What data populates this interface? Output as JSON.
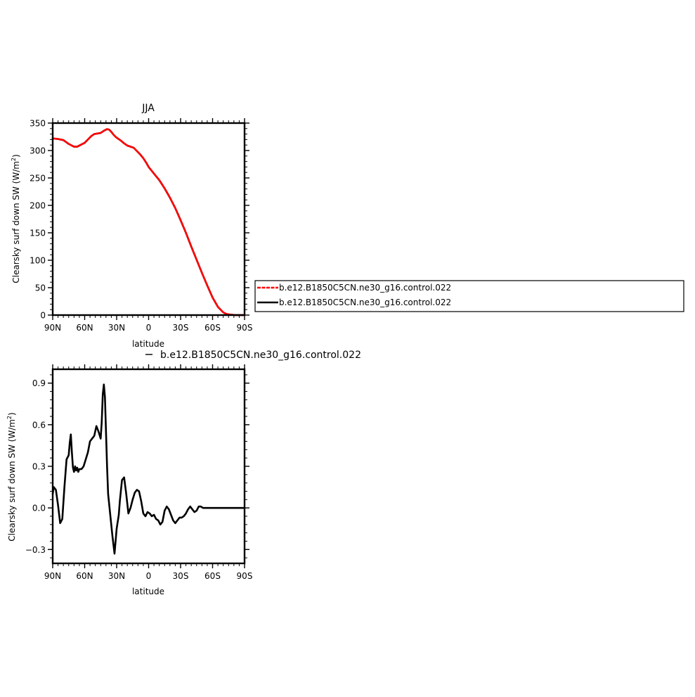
{
  "chart_data": [
    {
      "type": "line",
      "title": "JJA",
      "xlabel": "latitude",
      "ylabel": "Clearsky surf down SW (W/m",
      "ylabel_sup": "2",
      "ylabel_close": ")",
      "xlim": [
        90,
        -90
      ],
      "ylim": [
        0,
        350
      ],
      "xticks": [
        {
          "value": 90,
          "label": "90N"
        },
        {
          "value": 60,
          "label": "60N"
        },
        {
          "value": 30,
          "label": "30N"
        },
        {
          "value": 0,
          "label": "0"
        },
        {
          "value": -30,
          "label": "30S"
        },
        {
          "value": -60,
          "label": "60S"
        },
        {
          "value": -90,
          "label": "90S"
        }
      ],
      "yticks": [
        {
          "value": 0,
          "label": "0"
        },
        {
          "value": 50,
          "label": "50"
        },
        {
          "value": 100,
          "label": "100"
        },
        {
          "value": 150,
          "label": "150"
        },
        {
          "value": 200,
          "label": "200"
        },
        {
          "value": 250,
          "label": "250"
        },
        {
          "value": 300,
          "label": "300"
        },
        {
          "value": 350,
          "label": "350"
        }
      ],
      "legend_position": "right",
      "series": [
        {
          "name": "b.e12.B1850C5CN.ne30_g16.control.022",
          "color": "#000000",
          "dashed": false,
          "x": [
            90,
            85,
            80,
            75,
            72,
            70,
            67,
            64,
            60,
            57,
            54,
            51,
            48,
            45,
            42,
            39,
            37,
            35,
            33,
            31,
            29,
            26,
            23,
            20,
            17,
            14,
            11,
            8,
            5,
            2,
            0,
            -5,
            -10,
            -15,
            -20,
            -25,
            -30,
            -35,
            -40,
            -45,
            -50,
            -55,
            -60,
            -65,
            -70,
            -73,
            -76,
            -79,
            -82,
            -85,
            -88,
            -90
          ],
          "y": [
            322,
            321,
            319,
            312,
            309,
            307,
            307,
            310,
            314,
            320,
            326,
            330,
            331,
            332,
            336,
            339,
            338,
            334,
            329,
            325,
            322,
            318,
            313,
            309,
            307,
            305,
            299,
            293,
            286,
            277,
            270,
            258,
            246,
            231,
            214,
            195,
            173,
            150,
            125,
            101,
            77,
            54,
            32,
            15,
            5,
            2,
            1,
            0.5,
            0,
            0,
            0,
            0
          ]
        },
        {
          "name": "b.e12.B1850C5CN.ne30_g16.control.022",
          "color": "#ff0000",
          "dashed": true,
          "x": [
            90,
            85,
            80,
            75,
            72,
            70,
            67,
            64,
            60,
            57,
            54,
            51,
            48,
            45,
            42,
            39,
            37,
            35,
            33,
            31,
            29,
            26,
            23,
            20,
            17,
            14,
            11,
            8,
            5,
            2,
            0,
            -5,
            -10,
            -15,
            -20,
            -25,
            -30,
            -35,
            -40,
            -45,
            -50,
            -55,
            -60,
            -65,
            -70,
            -73,
            -76,
            -79,
            -82,
            -85,
            -88,
            -90
          ],
          "y": [
            322,
            321,
            319,
            312,
            309,
            307,
            307,
            310,
            314,
            320,
            326,
            330,
            331,
            332,
            336,
            339,
            338,
            334,
            329,
            325,
            322,
            318,
            313,
            309,
            307,
            305,
            299,
            293,
            286,
            277,
            270,
            258,
            246,
            231,
            214,
            195,
            173,
            150,
            125,
            101,
            77,
            54,
            32,
            15,
            5,
            2,
            1,
            0.5,
            0,
            0,
            0,
            0
          ]
        }
      ]
    },
    {
      "type": "line",
      "title": "",
      "xlabel": "latitude",
      "ylabel": "Clearsky surf down SW (W/m",
      "ylabel_sup": "2",
      "ylabel_close": ")",
      "xlim": [
        90,
        -90
      ],
      "ylim": [
        -0.4,
        1.0
      ],
      "xticks": [
        {
          "value": 90,
          "label": "90N"
        },
        {
          "value": 60,
          "label": "60N"
        },
        {
          "value": 30,
          "label": "30N"
        },
        {
          "value": 0,
          "label": "0"
        },
        {
          "value": -30,
          "label": "30S"
        },
        {
          "value": -60,
          "label": "60S"
        },
        {
          "value": -90,
          "label": "90S"
        }
      ],
      "yticks": [
        {
          "value": -0.3,
          "label": "−0.3"
        },
        {
          "value": 0.0,
          "label": "0.0"
        },
        {
          "value": 0.3,
          "label": "0.3"
        },
        {
          "value": 0.6,
          "label": "0.6"
        },
        {
          "value": 0.9,
          "label": "0.9"
        }
      ],
      "legend_position": "top",
      "series": [
        {
          "name": "b.e12.B1850C5CN.ne30_g16.control.022",
          "color": "#000000",
          "dashed": false,
          "x": [
            90,
            89,
            87,
            85,
            83,
            81,
            79,
            77,
            75,
            74,
            73,
            72,
            71,
            70,
            69,
            68,
            67,
            66,
            65,
            63,
            61,
            59,
            57,
            55,
            53,
            51,
            49,
            47,
            45,
            44,
            43,
            42,
            41,
            40,
            39,
            38,
            36,
            34,
            32,
            30,
            28,
            27,
            25,
            23,
            21,
            19,
            17,
            15,
            13,
            11,
            9,
            7,
            5,
            3,
            1,
            -1,
            -3,
            -5,
            -7,
            -9,
            -11,
            -13,
            -15,
            -17,
            -19,
            -21,
            -23,
            -25,
            -27,
            -29,
            -31,
            -33,
            -35,
            -37,
            -39,
            -41,
            -43,
            -45,
            -47,
            -49,
            -51,
            -53,
            -55,
            -57,
            -59,
            -61,
            -63,
            -65,
            -67,
            -69,
            -71,
            -74,
            -77,
            -80,
            -85,
            -90
          ],
          "y": [
            0.1,
            0.15,
            0.13,
            0.02,
            -0.11,
            -0.08,
            0.15,
            0.35,
            0.38,
            0.47,
            0.53,
            0.4,
            0.29,
            0.26,
            0.3,
            0.27,
            0.29,
            0.26,
            0.28,
            0.28,
            0.3,
            0.35,
            0.4,
            0.48,
            0.5,
            0.52,
            0.59,
            0.55,
            0.5,
            0.62,
            0.82,
            0.89,
            0.8,
            0.55,
            0.3,
            0.1,
            -0.05,
            -0.2,
            -0.33,
            -0.15,
            -0.05,
            0.05,
            0.2,
            0.22,
            0.1,
            -0.04,
            0.0,
            0.06,
            0.11,
            0.13,
            0.12,
            0.05,
            -0.04,
            -0.06,
            -0.03,
            -0.04,
            -0.06,
            -0.05,
            -0.08,
            -0.09,
            -0.12,
            -0.1,
            -0.02,
            0.01,
            -0.01,
            -0.05,
            -0.09,
            -0.11,
            -0.09,
            -0.07,
            -0.07,
            -0.06,
            -0.04,
            -0.01,
            0.01,
            -0.01,
            -0.03,
            -0.02,
            0.01,
            0.01,
            0.0,
            0.0,
            0.0,
            0.0,
            0.0,
            0.0,
            0.0,
            0.0,
            0.0,
            0.0,
            0.0,
            0.0,
            0.0,
            0.0,
            0.0,
            0.0
          ]
        }
      ]
    }
  ]
}
